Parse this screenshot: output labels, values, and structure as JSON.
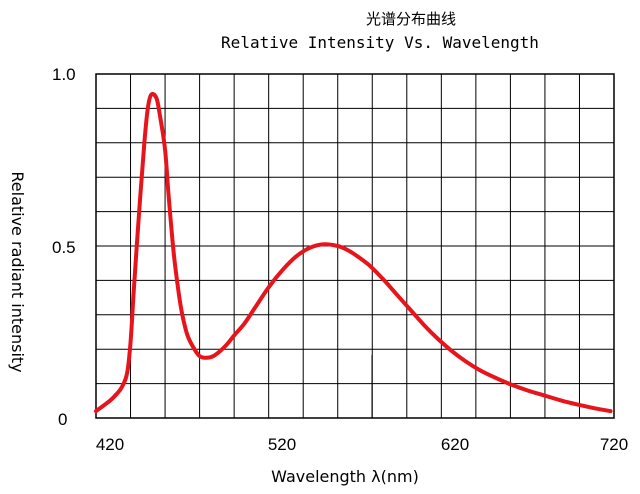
{
  "chart_data": {
    "type": "line",
    "title": "光谱分布曲线",
    "subtitle": "Relative Intensity Vs. Wavelength",
    "xlabel": "Wavelength λ(nm)",
    "ylabel": "Relative radiant intensity",
    "xlim": [
      420,
      720
    ],
    "ylim": [
      0,
      1.0
    ],
    "x_ticks": [
      "420",
      "520",
      "620",
      "720"
    ],
    "y_ticks": [
      "0",
      "0.5",
      "1.0"
    ],
    "grid": true,
    "line_color": "#e8141c",
    "series": [
      {
        "x": [
          420,
          428,
          432,
          435,
          438,
          440,
          442,
          445,
          448,
          450,
          452,
          455,
          457,
          460,
          462,
          465,
          468,
          470,
          473,
          477,
          480,
          484,
          488,
          492,
          496,
          500,
          506,
          512,
          520,
          528,
          536,
          544,
          552,
          560,
          565,
          570,
          578,
          586,
          594,
          602,
          610,
          618,
          626,
          634,
          642,
          650,
          660,
          670,
          680,
          690,
          700,
          710,
          718
        ],
        "y": [
          0.02,
          0.05,
          0.07,
          0.09,
          0.13,
          0.22,
          0.38,
          0.6,
          0.8,
          0.9,
          0.94,
          0.93,
          0.88,
          0.78,
          0.65,
          0.48,
          0.36,
          0.3,
          0.24,
          0.2,
          0.18,
          0.175,
          0.18,
          0.195,
          0.215,
          0.24,
          0.275,
          0.32,
          0.38,
          0.43,
          0.47,
          0.495,
          0.505,
          0.5,
          0.49,
          0.475,
          0.445,
          0.405,
          0.36,
          0.315,
          0.27,
          0.23,
          0.195,
          0.165,
          0.14,
          0.12,
          0.098,
          0.08,
          0.065,
          0.05,
          0.038,
          0.027,
          0.02
        ]
      }
    ]
  }
}
